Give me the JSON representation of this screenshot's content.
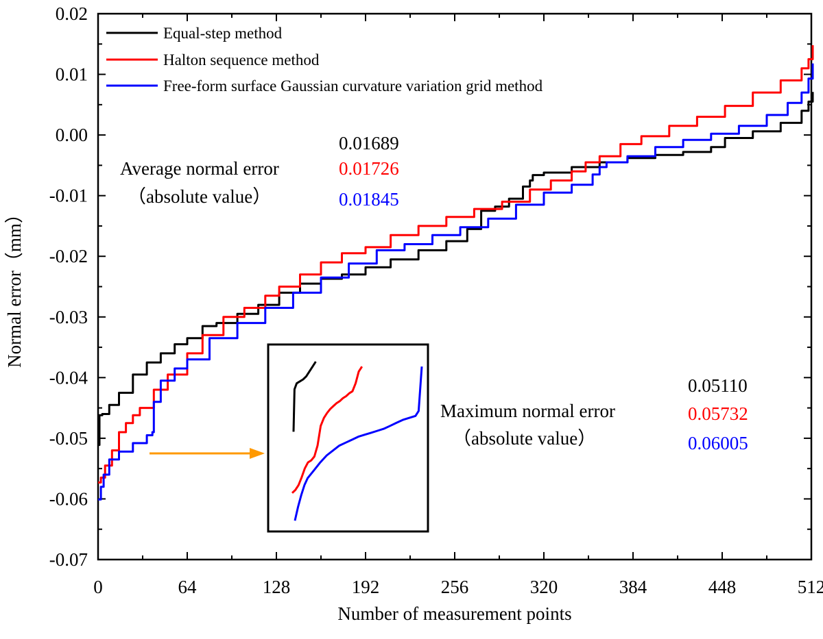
{
  "colors": {
    "equal_step": "#000000",
    "halton": "#ff0000",
    "gaussian": "#0000ff",
    "arrow": "#ff9900"
  },
  "chart_data": {
    "type": "line",
    "title": "",
    "xlabel": "Number of measurement points",
    "ylabel": "Normal error（mm）",
    "xlim": [
      0,
      512
    ],
    "ylim": [
      -0.07,
      0.02
    ],
    "x_ticks": [
      0,
      64,
      128,
      192,
      256,
      320,
      384,
      448,
      512
    ],
    "x_tick_labels": [
      "0",
      "64",
      "128",
      "192",
      "256",
      "320",
      "384",
      "448",
      "512"
    ],
    "y_ticks": [
      -0.07,
      -0.06,
      -0.05,
      -0.04,
      -0.03,
      -0.02,
      -0.01,
      0.0,
      0.01,
      0.02
    ],
    "y_tick_labels": [
      "-0.07",
      "-0.06",
      "-0.05",
      "-0.04",
      "-0.03",
      "-0.02",
      "-0.01",
      "0.00",
      "0.01",
      "0.02"
    ],
    "grid": false,
    "legend_position": "top-left",
    "series": [
      {
        "name": "Equal-step method",
        "color": "#000000",
        "x": [
          0,
          1,
          3,
          8,
          15,
          25,
          35,
          45,
          55,
          64,
          75,
          85,
          100,
          115,
          130,
          145,
          160,
          175,
          192,
          210,
          230,
          250,
          265,
          275,
          285,
          295,
          305,
          310,
          312,
          320,
          340,
          360,
          380,
          400,
          420,
          440,
          450,
          470,
          490,
          505,
          510,
          513
        ],
        "values": [
          -0.0511,
          -0.0462,
          -0.046,
          -0.0445,
          -0.0425,
          -0.0395,
          -0.0375,
          -0.036,
          -0.0345,
          -0.0335,
          -0.0315,
          -0.031,
          -0.0295,
          -0.028,
          -0.026,
          -0.0245,
          -0.0237,
          -0.023,
          -0.0218,
          -0.0205,
          -0.019,
          -0.0175,
          -0.0155,
          -0.0125,
          -0.0118,
          -0.0105,
          -0.0085,
          -0.0075,
          -0.0066,
          -0.0062,
          -0.0053,
          -0.0045,
          -0.0038,
          -0.0033,
          -0.0028,
          -0.002,
          -0.0005,
          0.0006,
          0.002,
          0.004,
          0.0055,
          0.0071
        ]
      },
      {
        "name": "Halton sequence method",
        "color": "#ff0000",
        "x": [
          0,
          2,
          5,
          10,
          15,
          20,
          25,
          30,
          40,
          50,
          64,
          75,
          90,
          105,
          120,
          130,
          145,
          160,
          175,
          192,
          210,
          230,
          250,
          270,
          290,
          310,
          325,
          340,
          350,
          360,
          375,
          390,
          410,
          430,
          450,
          470,
          490,
          505,
          510,
          513
        ],
        "values": [
          -0.0573,
          -0.0565,
          -0.0545,
          -0.052,
          -0.049,
          -0.0475,
          -0.0462,
          -0.045,
          -0.042,
          -0.0395,
          -0.036,
          -0.033,
          -0.03,
          -0.0285,
          -0.0265,
          -0.025,
          -0.023,
          -0.021,
          -0.0195,
          -0.0185,
          -0.0165,
          -0.015,
          -0.0135,
          -0.0122,
          -0.011,
          -0.009,
          -0.0075,
          -0.006,
          -0.0045,
          -0.0035,
          -0.0015,
          -0.0002,
          0.0015,
          0.003,
          0.0048,
          0.007,
          0.009,
          0.011,
          0.0125,
          0.0148
        ]
      },
      {
        "name": "Free-form surface Gaussian curvature variation grid method",
        "color": "#0000ff",
        "x": [
          0,
          2,
          4,
          8,
          15,
          25,
          35,
          39,
          40,
          45,
          55,
          64,
          80,
          100,
          120,
          140,
          160,
          180,
          200,
          220,
          240,
          260,
          280,
          300,
          320,
          340,
          355,
          360,
          365,
          380,
          400,
          420,
          440,
          460,
          480,
          495,
          505,
          510,
          513
        ],
        "values": [
          -0.0601,
          -0.058,
          -0.056,
          -0.0535,
          -0.0522,
          -0.0508,
          -0.0495,
          -0.049,
          -0.044,
          -0.0405,
          -0.0385,
          -0.037,
          -0.0335,
          -0.031,
          -0.0285,
          -0.026,
          -0.0235,
          -0.0212,
          -0.019,
          -0.018,
          -0.0165,
          -0.0152,
          -0.0138,
          -0.0115,
          -0.0095,
          -0.0082,
          -0.0065,
          -0.0053,
          -0.0045,
          -0.0035,
          -0.002,
          -0.0008,
          0.0002,
          0.0015,
          0.0033,
          0.0053,
          0.007,
          0.0093,
          0.0118
        ]
      }
    ],
    "annotations": {
      "average": {
        "label_line1": "Average normal error",
        "label_line2": "（absolute value）",
        "values": [
          "0.01689",
          "0.01726",
          "0.01845"
        ]
      },
      "maximum": {
        "label_line1": "Maximum normal error",
        "label_line2": "（absolute value）",
        "values": [
          "0.05110",
          "0.05732",
          "0.06005"
        ]
      }
    },
    "inset": {
      "description": "zoomed view of the start of the curves",
      "series": [
        {
          "name": "Equal-step method",
          "color": "#000000",
          "x": [
            0,
            0.3,
            1,
            2,
            3,
            4,
            5,
            6,
            7
          ],
          "values": [
            -0.0511,
            -0.0468,
            -0.0462,
            -0.046,
            -0.0458,
            -0.0455,
            -0.045,
            -0.0445,
            -0.044
          ]
        },
        {
          "name": "Halton sequence method",
          "color": "#ff0000",
          "x": [
            0,
            1,
            2,
            3,
            4,
            5,
            6,
            7,
            8,
            9,
            10,
            11,
            12,
            13,
            14,
            15,
            16,
            17,
            18,
            19,
            20,
            21,
            22
          ],
          "values": [
            -0.0573,
            -0.057,
            -0.0565,
            -0.0557,
            -0.0548,
            -0.0542,
            -0.054,
            -0.0536,
            -0.0525,
            -0.0505,
            -0.0497,
            -0.0492,
            -0.0488,
            -0.0485,
            -0.0482,
            -0.048,
            -0.0477,
            -0.0475,
            -0.0472,
            -0.047,
            -0.0462,
            -0.045,
            -0.0445
          ]
        },
        {
          "name": "Free-form surface Gaussian curvature variation grid method",
          "color": "#0000ff",
          "x": [
            0,
            1,
            2,
            3,
            4,
            6,
            8,
            10,
            12,
            14,
            16,
            18,
            20,
            22,
            24,
            26,
            28,
            30,
            32,
            34,
            36,
            38,
            39,
            40
          ],
          "values": [
            -0.0601,
            -0.0587,
            -0.0575,
            -0.0565,
            -0.0558,
            -0.055,
            -0.0542,
            -0.0535,
            -0.053,
            -0.0525,
            -0.0522,
            -0.0519,
            -0.0516,
            -0.0514,
            -0.0512,
            -0.051,
            -0.0508,
            -0.0505,
            -0.0502,
            -0.0499,
            -0.0497,
            -0.0495,
            -0.049,
            -0.0445
          ]
        }
      ]
    }
  }
}
